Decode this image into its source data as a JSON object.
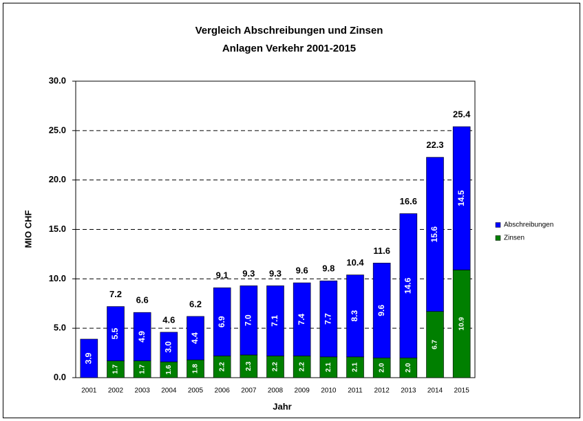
{
  "chart_data": {
    "type": "stacked-bar",
    "title": "Vergleich Abschreibungen und Zinsen",
    "subtitle": "Anlagen Verkehr 2001-2015",
    "ylabel": "MIO CHF",
    "xlabel": "Jahr",
    "categories": [
      "2001",
      "2002",
      "2003",
      "2004",
      "2005",
      "2006",
      "2007",
      "2008",
      "2009",
      "2010",
      "2011",
      "2012",
      "2013",
      "2014",
      "2015"
    ],
    "series": [
      {
        "name": "Zinsen",
        "color": "#007f00",
        "values": [
          null,
          1.7,
          1.7,
          1.6,
          1.8,
          2.2,
          2.3,
          2.2,
          2.2,
          2.1,
          2.1,
          2.0,
          2.0,
          6.7,
          10.9
        ],
        "value_labels": [
          null,
          "1.7",
          "1.7",
          "1.6",
          "1.8",
          "2.2",
          "2.3",
          "2.2",
          "2.2",
          "2.1",
          "2.1",
          "2.0",
          "2.0",
          "6.7",
          "10.9"
        ]
      },
      {
        "name": "Abschreibungen",
        "color": "#0000ff",
        "values": [
          3.9,
          5.5,
          4.9,
          3.0,
          4.4,
          6.9,
          7.0,
          7.1,
          7.4,
          7.7,
          8.3,
          9.6,
          14.6,
          15.6,
          14.5
        ],
        "value_labels": [
          "3.9",
          "5.5",
          "4.9",
          "3.0",
          "4.4",
          "6.9",
          "7.0",
          "7.1",
          "7.4",
          "7.7",
          "8.3",
          "9.6",
          "14.6",
          "15.6",
          "14.5"
        ]
      }
    ],
    "totals": [
      null,
      7.2,
      6.6,
      4.6,
      6.2,
      9.1,
      9.3,
      9.3,
      9.6,
      9.8,
      10.4,
      11.6,
      16.6,
      22.3,
      25.4
    ],
    "ylim": [
      0,
      30
    ],
    "yticks": [
      {
        "value": 0,
        "label": "0.0"
      },
      {
        "value": 5,
        "label": "5.0"
      },
      {
        "value": 10,
        "label": "10.0"
      },
      {
        "value": 15,
        "label": "15.0"
      },
      {
        "value": 20,
        "label": "20.0"
      },
      {
        "value": 25,
        "label": "25.0"
      },
      {
        "value": 30,
        "label": "30.0"
      }
    ],
    "grid": true,
    "legend": "right"
  }
}
